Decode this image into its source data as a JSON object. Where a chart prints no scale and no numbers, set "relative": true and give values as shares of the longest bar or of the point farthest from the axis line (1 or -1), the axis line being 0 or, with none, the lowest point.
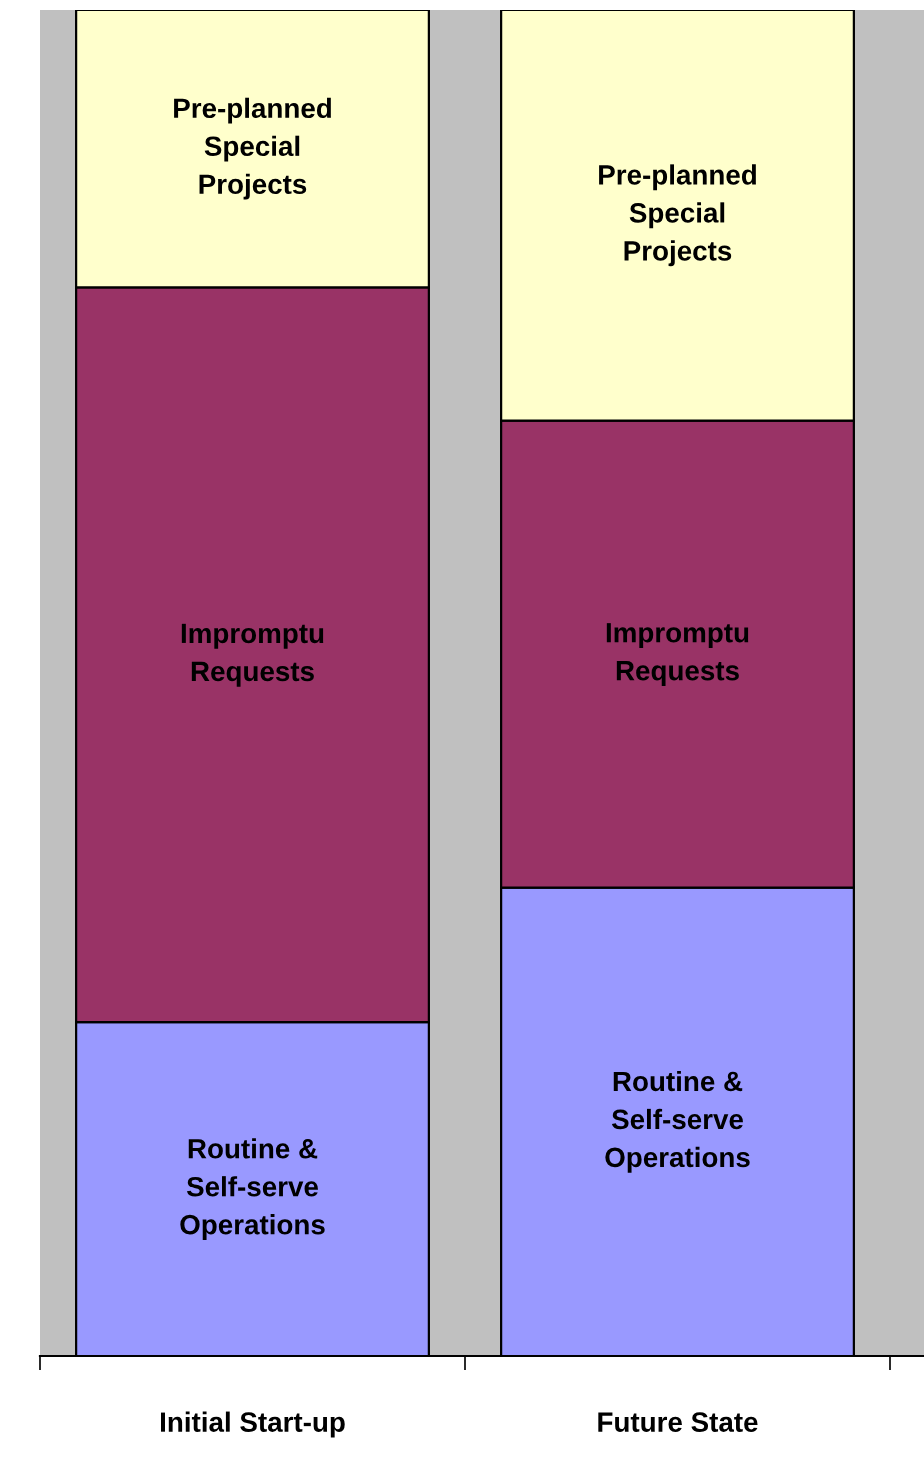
{
  "chart_data": {
    "type": "bar",
    "stacked": true,
    "relative": true,
    "legend": false,
    "grid": false,
    "categories": [
      "Initial Start-up",
      "Future State"
    ],
    "series": [
      {
        "name": "Routine &\nSelf-serve\nOperations",
        "color": "#9999ff",
        "values": [
          0.248,
          0.348
        ]
      },
      {
        "name": "Impromptu\nRequests",
        "color": "#993366",
        "values": [
          0.546,
          0.347
        ]
      },
      {
        "name": "Pre-planned\nSpecial\nProjects",
        "color": "#ffffcc",
        "values": [
          0.206,
          0.305
        ]
      }
    ]
  }
}
